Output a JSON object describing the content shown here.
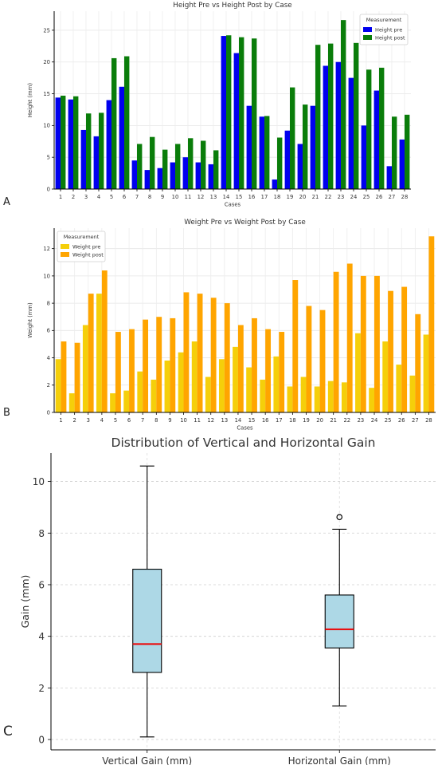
{
  "panels": {
    "a": "A",
    "b": "B",
    "c": "C"
  },
  "chart_data": [
    {
      "type": "bar",
      "title": "Height Pre vs Height Post by Case",
      "xlabel": "Cases",
      "ylabel": "Height (mm)",
      "ylim": [
        0,
        28
      ],
      "yticks": [
        0,
        5,
        10,
        15,
        20,
        25
      ],
      "categories": [
        "1",
        "2",
        "3",
        "4",
        "5",
        "6",
        "7",
        "8",
        "9",
        "10",
        "11",
        "12",
        "13",
        "14",
        "15",
        "16",
        "17",
        "18",
        "19",
        "20",
        "21",
        "22",
        "23",
        "24",
        "25",
        "26",
        "27",
        "28"
      ],
      "legend": {
        "title": "Measurement",
        "placement": "top-right"
      },
      "grid": true,
      "series": [
        {
          "name": "Height pre",
          "color": "#0000ee",
          "values": [
            14.4,
            14.1,
            9.3,
            8.3,
            14.0,
            16.1,
            4.5,
            3.0,
            3.3,
            4.2,
            5.0,
            4.2,
            3.9,
            24.1,
            21.4,
            13.1,
            11.4,
            1.5,
            9.2,
            7.1,
            13.1,
            19.4,
            20.0,
            17.5,
            10.0,
            15.5,
            3.6,
            7.8
          ]
        },
        {
          "name": "Height post",
          "color": "#0a7d0a",
          "values": [
            14.7,
            14.6,
            11.9,
            12.0,
            20.6,
            20.9,
            7.1,
            8.2,
            6.2,
            7.1,
            8.0,
            7.6,
            6.1,
            24.2,
            23.9,
            23.7,
            11.5,
            8.1,
            16.0,
            13.3,
            22.7,
            22.9,
            26.6,
            23.0,
            18.8,
            19.1,
            11.4,
            11.7
          ]
        }
      ]
    },
    {
      "type": "bar",
      "title": "Weight Pre vs Weight Post by Case",
      "xlabel": "Cases",
      "ylabel": "Weight (mm)",
      "ylim": [
        0,
        13.5
      ],
      "yticks": [
        0,
        2,
        4,
        6,
        8,
        10,
        12
      ],
      "categories": [
        "1",
        "2",
        "3",
        "4",
        "5",
        "6",
        "7",
        "8",
        "9",
        "10",
        "11",
        "12",
        "13",
        "14",
        "15",
        "16",
        "17",
        "18",
        "19",
        "20",
        "21",
        "22",
        "23",
        "24",
        "25",
        "26",
        "27",
        "28"
      ],
      "legend": {
        "title": "Measurement",
        "placement": "top-left"
      },
      "grid": true,
      "series": [
        {
          "name": "Weight pre",
          "color": "#f5cf0a",
          "values": [
            3.9,
            1.4,
            6.4,
            8.7,
            1.4,
            1.6,
            3.0,
            2.4,
            3.8,
            4.4,
            5.2,
            2.6,
            3.9,
            4.8,
            3.3,
            2.4,
            4.1,
            1.9,
            2.6,
            1.9,
            2.3,
            2.2,
            5.8,
            1.8,
            5.2,
            3.5,
            2.7,
            5.7
          ]
        },
        {
          "name": "Weight post",
          "color": "#ffa500",
          "values": [
            5.2,
            5.1,
            8.7,
            10.4,
            5.9,
            6.1,
            6.8,
            7.0,
            6.9,
            8.8,
            8.7,
            8.4,
            8.0,
            6.4,
            6.9,
            6.1,
            5.9,
            9.7,
            7.8,
            7.5,
            10.3,
            10.9,
            10.0,
            10.0,
            8.9,
            9.2,
            7.2,
            12.9
          ]
        }
      ]
    },
    {
      "type": "box",
      "title": "Distribution of Vertical and Horizontal Gain",
      "xlabel": "",
      "ylabel": "Gain (mm)",
      "ylim": [
        -0.4,
        11.1
      ],
      "yticks": [
        0,
        2,
        4,
        6,
        8,
        10
      ],
      "grid": true,
      "box_color": "#add8e6",
      "median_color": "#ee0000",
      "boxes": [
        {
          "label": "Vertical Gain (mm)",
          "whisker_low": 0.1,
          "q1": 2.6,
          "median": 3.7,
          "q3": 6.6,
          "whisker_high": 10.6,
          "outliers": []
        },
        {
          "label": "Horizontal Gain (mm)",
          "whisker_low": 1.3,
          "q1": 3.55,
          "median": 4.27,
          "q3": 5.6,
          "whisker_high": 8.15,
          "outliers": [
            8.62
          ]
        }
      ]
    }
  ]
}
